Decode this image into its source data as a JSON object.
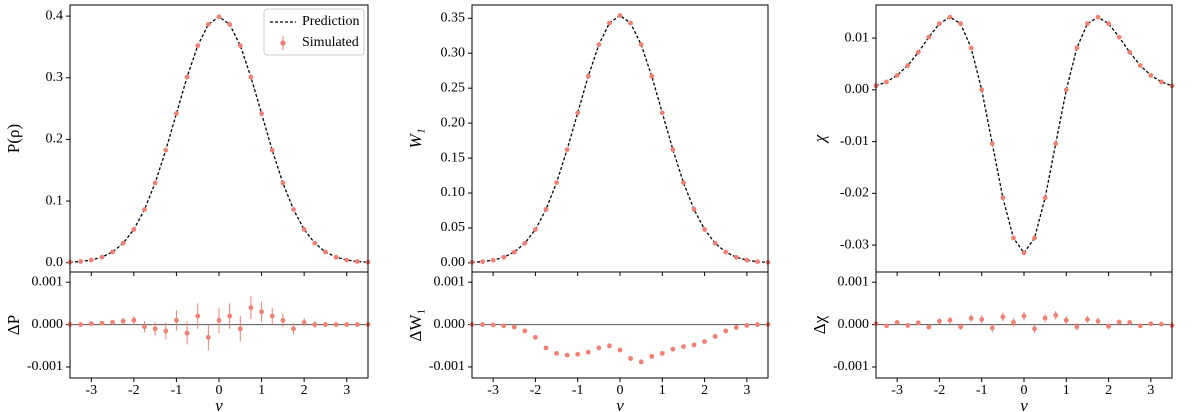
{
  "chart_data": [
    {
      "type": "line",
      "ylabel": "P(ρ)",
      "legend": "upper right",
      "x": [
        -3.5,
        -3.25,
        -3,
        -2.75,
        -2.5,
        -2.25,
        -2,
        -1.75,
        -1.5,
        -1.25,
        -1,
        -0.75,
        -0.5,
        -0.25,
        0,
        0.25,
        0.5,
        0.75,
        1,
        1.25,
        1.5,
        1.75,
        2,
        2.25,
        2.5,
        2.75,
        3,
        3.25,
        3.5
      ],
      "xlim": [
        -3.5,
        3.5
      ],
      "ylim": [
        -0.015,
        0.418
      ],
      "yticks": [
        {
          "value": 0,
          "label": "0.0"
        },
        0.1,
        0.2,
        0.3,
        0.4
      ],
      "series": [
        {
          "name": "Prediction",
          "color": "#000000",
          "style": "dashed",
          "values": [
            0.0009,
            0.002,
            0.0044,
            0.0091,
            0.0175,
            0.0317,
            0.054,
            0.0863,
            0.1295,
            0.1826,
            0.242,
            0.3011,
            0.3521,
            0.3866,
            0.3989,
            0.3866,
            0.3521,
            0.3011,
            0.242,
            0.1826,
            0.1295,
            0.0863,
            0.054,
            0.0317,
            0.0175,
            0.0091,
            0.0044,
            0.002,
            0.0009
          ]
        },
        {
          "name": "Simulated",
          "color": "#f08070",
          "style": "points",
          "values": [
            0.0009,
            0.002,
            0.0044,
            0.0091,
            0.0175,
            0.0317,
            0.054,
            0.0863,
            0.1295,
            0.1826,
            0.242,
            0.3011,
            0.3521,
            0.3866,
            0.3989,
            0.3866,
            0.3521,
            0.3011,
            0.242,
            0.1826,
            0.1295,
            0.0863,
            0.054,
            0.0317,
            0.0175,
            0.0091,
            0.0044,
            0.002,
            0.0009
          ]
        }
      ]
    },
    {
      "type": "line",
      "ylabel": "W₁",
      "x": [
        -3.5,
        -3.25,
        -3,
        -2.75,
        -2.5,
        -2.25,
        -2,
        -1.75,
        -1.5,
        -1.25,
        -1,
        -0.75,
        -0.5,
        -0.25,
        0,
        0.25,
        0.5,
        0.75,
        1,
        1.25,
        1.5,
        1.75,
        2,
        2.25,
        2.5,
        2.75,
        3,
        3.25,
        3.5
      ],
      "xlim": [
        -3.5,
        3.5
      ],
      "ylim": [
        -0.013,
        0.369
      ],
      "yticks": [
        {
          "value": 0,
          "label": "0.00"
        },
        0.05,
        {
          "value": 0.1,
          "label": "0.10"
        },
        0.15,
        {
          "value": 0.2,
          "label": "0.20"
        },
        0.25,
        {
          "value": 0.3,
          "label": "0.30"
        },
        0.35
      ],
      "series": [
        {
          "color": "#000000",
          "style": "dashed",
          "values": [
            0.0008,
            0.0018,
            0.0039,
            0.0081,
            0.0155,
            0.0282,
            0.0479,
            0.0766,
            0.1149,
            0.1621,
            0.2147,
            0.2672,
            0.3124,
            0.3431,
            0.354,
            0.3431,
            0.3124,
            0.2672,
            0.2147,
            0.1621,
            0.1149,
            0.0766,
            0.0479,
            0.0282,
            0.0155,
            0.0081,
            0.0039,
            0.0018,
            0.0008
          ]
        },
        {
          "color": "#f08070",
          "style": "points",
          "values": [
            0.0008,
            0.0018,
            0.0039,
            0.0081,
            0.0155,
            0.0282,
            0.0479,
            0.0766,
            0.1149,
            0.1621,
            0.2147,
            0.2672,
            0.3124,
            0.3431,
            0.354,
            0.3431,
            0.3124,
            0.2672,
            0.2147,
            0.1621,
            0.1149,
            0.0766,
            0.0479,
            0.0282,
            0.0155,
            0.0081,
            0.0039,
            0.0018,
            0.0008
          ]
        }
      ]
    },
    {
      "type": "line",
      "ylabel": "χ",
      "x": [
        -3.5,
        -3.25,
        -3,
        -2.75,
        -2.5,
        -2.25,
        -2,
        -1.75,
        -1.5,
        -1.25,
        -1,
        -0.75,
        -0.5,
        -0.25,
        0,
        0.25,
        0.5,
        0.75,
        1,
        1.25,
        1.5,
        1.75,
        2,
        2.25,
        2.5,
        2.75,
        3,
        3.25,
        3.5
      ],
      "xlim": [
        -3.5,
        3.5
      ],
      "ylim": [
        -0.0352,
        0.0164
      ],
      "yticks": [
        -0.03,
        -0.02,
        -0.01,
        {
          "value": 0,
          "label": "0.00"
        },
        0.01
      ],
      "series": [
        {
          "color": "#000000",
          "style": "dashed",
          "values": [
            0.00078,
            0.00153,
            0.0028,
            0.00471,
            0.00726,
            0.01019,
            0.01279,
            0.01405,
            0.01279,
            0.00811,
            0,
            -0.0104,
            -0.02085,
            -0.02862,
            -0.0315,
            -0.02862,
            -0.02085,
            -0.0104,
            0,
            0.00811,
            0.01279,
            0.01405,
            0.01279,
            0.01019,
            0.00726,
            0.00471,
            0.0028,
            0.00153,
            0.00078
          ]
        },
        {
          "color": "#f08070",
          "style": "points",
          "values": [
            0.00078,
            0.00153,
            0.0028,
            0.00471,
            0.00726,
            0.01019,
            0.01279,
            0.01405,
            0.01279,
            0.00811,
            0,
            -0.0104,
            -0.02085,
            -0.02862,
            -0.0315,
            -0.02862,
            -0.02085,
            -0.0104,
            0,
            0.00811,
            0.01279,
            0.01405,
            0.01279,
            0.01019,
            0.00726,
            0.00471,
            0.0028,
            0.00153,
            0.00078
          ]
        }
      ]
    },
    {
      "type": "errorbar",
      "ylabel": "ΔP",
      "xlabel": "ν",
      "color": "#f08070",
      "reference_line": 0,
      "x": [
        -3.5,
        -3.25,
        -3,
        -2.75,
        -2.5,
        -2.25,
        -2,
        -1.75,
        -1.5,
        -1.25,
        -1,
        -0.75,
        -0.5,
        -0.25,
        0,
        0.25,
        0.5,
        0.75,
        1,
        1.25,
        1.5,
        1.75,
        2,
        2.25,
        2.5,
        2.75,
        3,
        3.25,
        3.5
      ],
      "xlim": [
        -3.5,
        3.5
      ],
      "xticks": [
        -3,
        -2,
        -1,
        0,
        1,
        2,
        3
      ],
      "ylim": [
        -0.00126,
        0.00124
      ],
      "yticks": [
        -0.001,
        {
          "value": 0,
          "label": "0.000"
        },
        0.001
      ],
      "values": [
        0,
        0,
        2e-05,
        3e-05,
        5e-05,
        8e-05,
        0.0001,
        -5e-05,
        -0.0001,
        -0.00015,
        0.0001,
        -0.0002,
        0.0002,
        -0.0003,
        0.0001,
        0.0002,
        -0.0001,
        0.0004,
        0.0003,
        0.0002,
        0.0001,
        -0.0001,
        5e-05,
        0,
        0,
        0,
        0,
        0,
        0
      ],
      "errors": [
        3e-05,
        3e-05,
        4e-05,
        5e-05,
        6e-05,
        8e-05,
        0.0001,
        0.00013,
        0.00016,
        0.0002,
        0.00024,
        0.00027,
        0.0003,
        0.0003,
        0.0003,
        0.0003,
        0.0003,
        0.00027,
        0.00024,
        0.0002,
        0.00016,
        0.00013,
        0.0001,
        8e-05,
        6e-05,
        5e-05,
        4e-05,
        3e-05,
        3e-05
      ]
    },
    {
      "type": "errorbar",
      "ylabel": "ΔW₁",
      "xlabel": "ν",
      "color": "#f08070",
      "reference_line": 0,
      "x": [
        -3.5,
        -3.25,
        -3,
        -2.75,
        -2.5,
        -2.25,
        -2,
        -1.75,
        -1.5,
        -1.25,
        -1,
        -0.75,
        -0.5,
        -0.25,
        0,
        0.25,
        0.5,
        0.75,
        1,
        1.25,
        1.5,
        1.75,
        2,
        2.25,
        2.5,
        2.75,
        3,
        3.25,
        3.5
      ],
      "xlim": [
        -3.5,
        3.5
      ],
      "xticks": [
        -3,
        -2,
        -1,
        0,
        1,
        2,
        3
      ],
      "ylim": [
        -0.00126,
        0.00124
      ],
      "yticks": [
        -0.001,
        {
          "value": 0,
          "label": "0.000"
        },
        0.001
      ],
      "values": [
        0,
        0,
        -1e-05,
        -3e-05,
        -6e-05,
        -0.00015,
        -0.0003,
        -0.00055,
        -0.00068,
        -0.00072,
        -0.0007,
        -0.00065,
        -0.00055,
        -0.0005,
        -0.0006,
        -0.0008,
        -0.00088,
        -0.00075,
        -0.00068,
        -0.00058,
        -0.00052,
        -0.00048,
        -0.0004,
        -0.00028,
        -0.00015,
        -7e-05,
        -2e-05,
        0,
        0
      ],
      "errors": [
        1e-05,
        1e-05,
        2e-05,
        2e-05,
        3e-05,
        3e-05,
        4e-05,
        4e-05,
        5e-05,
        5e-05,
        5e-05,
        5e-05,
        6e-05,
        6e-05,
        6e-05,
        6e-05,
        6e-05,
        5e-05,
        5e-05,
        5e-05,
        5e-05,
        4e-05,
        4e-05,
        3e-05,
        3e-05,
        2e-05,
        2e-05,
        1e-05,
        1e-05
      ]
    },
    {
      "type": "errorbar",
      "ylabel": "Δχ",
      "xlabel": "ν",
      "color": "#f08070",
      "reference_line": 0,
      "x": [
        -3.5,
        -3.25,
        -3,
        -2.75,
        -2.5,
        -2.25,
        -2,
        -1.75,
        -1.5,
        -1.25,
        -1,
        -0.75,
        -0.5,
        -0.25,
        0,
        0.25,
        0.5,
        0.75,
        1,
        1.25,
        1.5,
        1.75,
        2,
        2.25,
        2.5,
        2.75,
        3,
        3.25,
        3.5
      ],
      "xlim": [
        -3.5,
        3.5
      ],
      "xticks": [
        -3,
        -2,
        -1,
        0,
        1,
        2,
        3
      ],
      "ylim": [
        -0.00126,
        0.00124
      ],
      "yticks": [
        -0.001,
        {
          "value": 0,
          "label": "0.000"
        },
        0.001
      ],
      "values": [
        2e-05,
        -3e-05,
        5e-05,
        -2e-05,
        4e-05,
        -6e-05,
        8e-05,
        0.0001,
        -5e-05,
        0.00015,
        0.00012,
        -8e-05,
        0.00018,
        5e-05,
        0.0002,
        -0.0001,
        0.00015,
        0.00022,
        0.0001,
        -5e-05,
        0.00012,
        8e-05,
        -4e-05,
        6e-05,
        5e-05,
        -3e-05,
        2e-05,
        1e-05,
        -2e-05
      ],
      "errors": [
        4e-05,
        4e-05,
        5e-05,
        5e-05,
        6e-05,
        6e-05,
        7e-05,
        8e-05,
        8e-05,
        9e-05,
        0.0001,
        0.0001,
        0.0001,
        0.0001,
        0.0001,
        0.0001,
        0.0001,
        0.0001,
        0.0001,
        9e-05,
        8e-05,
        8e-05,
        7e-05,
        6e-05,
        6e-05,
        5e-05,
        5e-05,
        4e-05,
        4e-05
      ]
    }
  ]
}
